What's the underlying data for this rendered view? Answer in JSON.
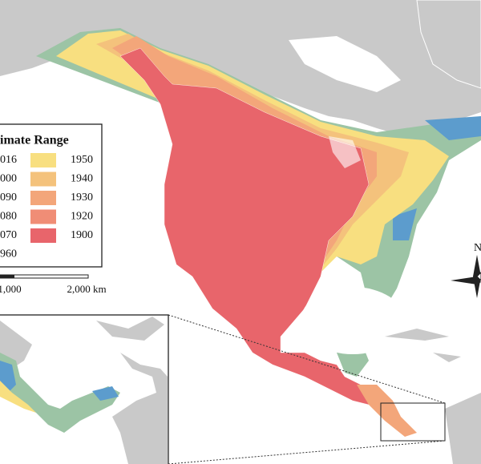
{
  "legend": {
    "title": "imate Range",
    "left_column": [
      "016",
      "000",
      "090",
      "080",
      "070",
      "960"
    ],
    "right_column": [
      {
        "label": "1950",
        "color": "#f8df80"
      },
      {
        "label": "1940",
        "color": "#f4c27c"
      },
      {
        "label": "1930",
        "color": "#f3a67a"
      },
      {
        "label": "1920",
        "color": "#f08d76"
      },
      {
        "label": "1900",
        "color": "#e8656b"
      }
    ]
  },
  "scale_bar": {
    "labels": [
      "1,000",
      "2,000 km"
    ]
  },
  "north_arrow": {
    "label": "N"
  }
}
